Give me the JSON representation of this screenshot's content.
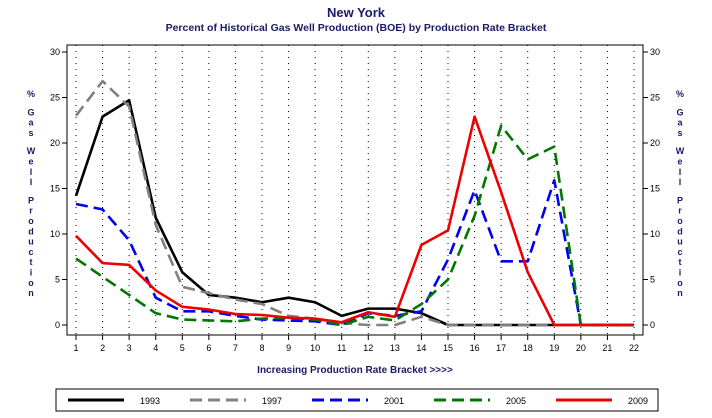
{
  "chart_data": {
    "type": "line",
    "title": "New York",
    "subtitle": "Percent of Historical Gas Well Production (BOE) by Production Rate Bracket",
    "xlabel": "Increasing Production Rate Bracket >>>>",
    "ylabel": "% Gas Well Production",
    "x": [
      1,
      2,
      3,
      4,
      5,
      6,
      7,
      8,
      9,
      10,
      11,
      12,
      13,
      14,
      15,
      16,
      17,
      18,
      19,
      20,
      21,
      22
    ],
    "xlim": [
      1,
      22
    ],
    "ylim": [
      0,
      30
    ],
    "yticks": [
      0,
      5,
      10,
      15,
      20,
      25,
      30
    ],
    "grid": true,
    "legend_position": "bottom",
    "series": [
      {
        "name": "1993",
        "color": "#000000",
        "dash": "solid",
        "values": [
          14.2,
          22.9,
          24.7,
          11.8,
          5.8,
          3.3,
          3.0,
          2.5,
          3.0,
          2.5,
          1.0,
          1.8,
          1.8,
          1.3,
          0.0,
          0.0,
          0.0,
          0.0,
          0.0,
          0.0,
          0.0,
          0.0
        ]
      },
      {
        "name": "1997",
        "color": "#808080",
        "dash": "dashed",
        "values": [
          23.0,
          26.8,
          24.0,
          11.0,
          4.2,
          3.5,
          2.8,
          2.3,
          1.0,
          0.7,
          0.2,
          0.0,
          0.0,
          0.9,
          0.0,
          0.0,
          0.0,
          0.0,
          0.0,
          0.0,
          0.0,
          0.0
        ]
      },
      {
        "name": "2001",
        "color": "#0000ee",
        "dash": "dashed",
        "values": [
          13.3,
          12.7,
          9.3,
          3.0,
          1.5,
          1.5,
          1.0,
          0.6,
          0.5,
          0.4,
          0.0,
          1.3,
          1.0,
          1.5,
          7.2,
          14.8,
          7.0,
          7.0,
          15.9,
          0.0,
          0.0,
          0.0
        ]
      },
      {
        "name": "2005",
        "color": "#007700",
        "dash": "dashed",
        "values": [
          7.3,
          5.3,
          3.3,
          1.3,
          0.6,
          0.5,
          0.4,
          0.7,
          0.8,
          0.6,
          0.0,
          0.9,
          0.5,
          2.3,
          5.0,
          12.0,
          21.9,
          18.2,
          19.6,
          0.0,
          0.0,
          0.0
        ]
      },
      {
        "name": "2009",
        "color": "#ee0000",
        "dash": "solid",
        "values": [
          9.8,
          6.8,
          6.6,
          3.8,
          2.0,
          1.7,
          1.2,
          1.1,
          0.8,
          0.7,
          0.3,
          1.4,
          0.9,
          8.8,
          10.4,
          22.9,
          14.6,
          5.8,
          0.0,
          0.0,
          0.0,
          0.0
        ]
      }
    ]
  }
}
